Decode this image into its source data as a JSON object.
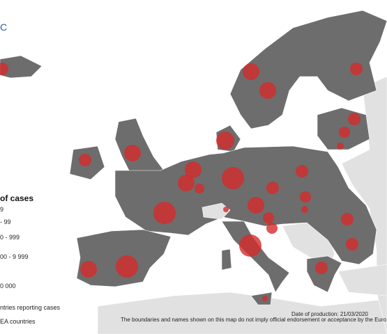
{
  "logo": "C",
  "legend": {
    "title": "of cases",
    "items": [
      "9",
      "- 99",
      "0 - 999",
      "00 - 9 999",
      "0 000",
      "ntries reporting cases",
      "EA countries"
    ]
  },
  "footer": {
    "date": "Date of production: 21/03/2020",
    "disclaimer": "The boundaries and names shown on this map do not imply official endorsement or acceptance by the Euro"
  }
}
